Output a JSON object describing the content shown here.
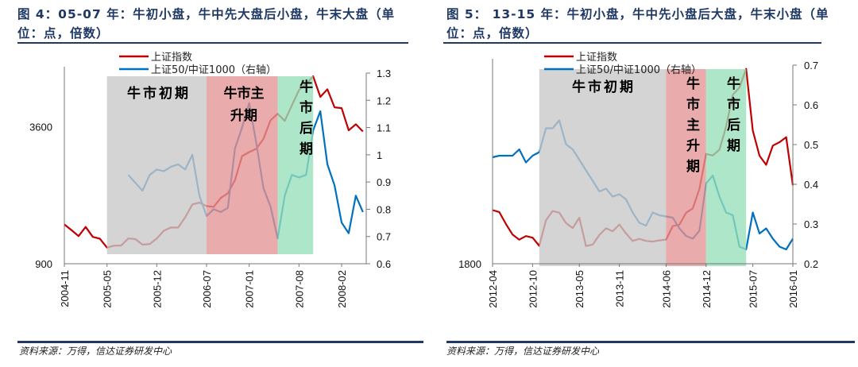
{
  "chart_data": [
    {
      "type": "line",
      "title": "图 4：05-07 年：牛初小盘，牛中先大盘后小盘，牛末大盘（单位：点，倍数）",
      "source": "资料来源：万得，信达证券研发中心",
      "x_tick_labels": [
        "2004-11",
        "2005-05",
        "2005-12",
        "2006-07",
        "2007-01",
        "2007-08",
        "2008-02"
      ],
      "left_axis": {
        "scale": "log",
        "ylim": [
          900,
          6200
        ],
        "tick_labels": [
          "3600",
          "900"
        ],
        "ticks": [
          3600,
          900
        ]
      },
      "right_axis": {
        "scale": "linear",
        "ylim": [
          0.6,
          1.3
        ],
        "tick_labels": [
          "1.3",
          "1.2",
          "1.1",
          "1",
          "0.9",
          "0.8",
          "0.7",
          "0.6"
        ],
        "ticks": [
          1.3,
          1.2,
          1.1,
          1.0,
          0.9,
          0.8,
          0.7,
          0.6
        ]
      },
      "legend_placement": "top-left",
      "phases": [
        {
          "label": "牛市初期",
          "start": "2005-05",
          "end": "2006-07",
          "color": "#c8c8c8"
        },
        {
          "label": "牛市主升期",
          "start": "2006-07",
          "end": "2007-05",
          "color": "#e39393"
        },
        {
          "label": "牛市后期",
          "start": "2007-05",
          "end": "2007-10",
          "color": "#96dfb9"
        }
      ],
      "series": [
        {
          "name": "上证指数",
          "axis": "left",
          "color": "#c00000",
          "x": [
            "2004-11",
            "2004-12",
            "2005-01",
            "2005-02",
            "2005-03",
            "2005-04",
            "2005-05",
            "2005-06",
            "2005-07",
            "2005-08",
            "2005-09",
            "2005-10",
            "2005-11",
            "2005-12",
            "2006-01",
            "2006-02",
            "2006-03",
            "2006-04",
            "2006-05",
            "2006-06",
            "2006-07",
            "2006-08",
            "2006-09",
            "2006-10",
            "2006-11",
            "2006-12",
            "2007-01",
            "2007-02",
            "2007-03",
            "2007-04",
            "2007-05",
            "2007-06",
            "2007-07",
            "2007-08",
            "2007-09",
            "2007-10",
            "2007-11",
            "2007-12",
            "2008-01",
            "2008-02",
            "2008-03",
            "2008-04",
            "2008-05"
          ],
          "y": [
            1340,
            1266,
            1191,
            1306,
            1181,
            1159,
            1060,
            1080,
            1083,
            1162,
            1155,
            1092,
            1099,
            1161,
            1258,
            1299,
            1298,
            1440,
            1641,
            1672,
            1612,
            1601,
            1752,
            1837,
            2099,
            2675,
            2786,
            2881,
            3183,
            3841,
            4109,
            3820,
            4471,
            5218,
            5552,
            6000,
            4871,
            5261,
            4383,
            4348,
            3472,
            3693,
            3433
          ]
        },
        {
          "name": "上证50/中证1000（右轴）",
          "axis": "right",
          "color": "#0070c0",
          "x": [
            "2005-08",
            "2005-10",
            "2005-11",
            "2005-12",
            "2006-01",
            "2006-02",
            "2006-03",
            "2006-04",
            "2006-05",
            "2006-06",
            "2006-07",
            "2006-08",
            "2006-09",
            "2006-10",
            "2006-11",
            "2006-12",
            "2007-01",
            "2007-02",
            "2007-03",
            "2007-04",
            "2007-05",
            "2007-06",
            "2007-07",
            "2007-08",
            "2007-09",
            "2007-10",
            "2007-11",
            "2007-12",
            "2008-01",
            "2008-02",
            "2008-03",
            "2008-04",
            "2008-05"
          ],
          "y": [
            0.926,
            0.868,
            0.926,
            0.946,
            0.94,
            0.956,
            0.965,
            0.946,
            1.0,
            0.85,
            0.775,
            0.8,
            0.79,
            0.805,
            1.024,
            1.1,
            1.19,
            1.043,
            0.878,
            0.81,
            0.693,
            0.85,
            0.926,
            0.917,
            0.926,
            1.09,
            1.16,
            0.965,
            0.888,
            0.751,
            0.712,
            0.85,
            0.79
          ]
        }
      ]
    },
    {
      "type": "line",
      "title": "图 5： 13-15 年：牛初小盘，牛中先小盘后大盘，牛末小盘（单位：点，倍数）",
      "source": "资料来源：万得，信达证券研发中心",
      "x_tick_labels": [
        "2012-04",
        "2012-10",
        "2013-05",
        "2013-11",
        "2014-06",
        "2014-12",
        "2015-07",
        "2016-01"
      ],
      "left_axis": {
        "scale": "log",
        "ylim": [
          1800,
          5200
        ],
        "tick_labels": [
          "1800"
        ],
        "ticks": [
          1800
        ]
      },
      "right_axis": {
        "scale": "linear",
        "ylim": [
          0.2,
          0.7
        ],
        "tick_labels": [
          "0.7",
          "0.6",
          "0.5",
          "0.4",
          "0.3",
          "0.2"
        ],
        "ticks": [
          0.7,
          0.6,
          0.5,
          0.4,
          0.3,
          0.2
        ]
      },
      "legend_placement": "top-left",
      "phases": [
        {
          "label": "牛市初期",
          "start": "2012-11",
          "end": "2014-06",
          "color": "#c8c8c8"
        },
        {
          "label": "牛市主升期",
          "start": "2014-06",
          "end": "2014-12",
          "color": "#e39393"
        },
        {
          "label": "牛市后期",
          "start": "2014-12",
          "end": "2015-06",
          "color": "#96dfb9"
        }
      ],
      "series": [
        {
          "name": "上证指数",
          "axis": "left",
          "color": "#c00000",
          "x": [
            "2012-04",
            "2012-05",
            "2012-06",
            "2012-07",
            "2012-08",
            "2012-09",
            "2012-10",
            "2012-11",
            "2012-12",
            "2013-01",
            "2013-02",
            "2013-03",
            "2013-04",
            "2013-05",
            "2013-06",
            "2013-07",
            "2013-08",
            "2013-09",
            "2013-10",
            "2013-11",
            "2013-12",
            "2014-01",
            "2014-02",
            "2014-03",
            "2014-04",
            "2014-05",
            "2014-06",
            "2014-07",
            "2014-08",
            "2014-09",
            "2014-10",
            "2014-11",
            "2014-12",
            "2015-01",
            "2015-02",
            "2015-03",
            "2015-04",
            "2015-05",
            "2015-06",
            "2015-07",
            "2015-08",
            "2015-09",
            "2015-10",
            "2015-11",
            "2015-12",
            "2016-01"
          ],
          "y": [
            2397,
            2373,
            2226,
            2103,
            2047,
            2086,
            2069,
            1980,
            2269,
            2385,
            2365,
            2237,
            2178,
            2301,
            1979,
            1994,
            2098,
            2175,
            2141,
            2220,
            2116,
            2033,
            2056,
            2033,
            2026,
            2039,
            2048,
            2201,
            2217,
            2364,
            2420,
            2683,
            3235,
            3210,
            3310,
            3748,
            4441,
            4612,
            5100,
            3664,
            3206,
            3053,
            3383,
            3445,
            3539,
            2738
          ]
        },
        {
          "name": "上证50/中证1000（右轴）",
          "axis": "right",
          "color": "#0070c0",
          "x": [
            "2012-04",
            "2012-05",
            "2012-06",
            "2012-07",
            "2012-08",
            "2012-09",
            "2012-10",
            "2012-11",
            "2012-12",
            "2013-01",
            "2013-02",
            "2013-03",
            "2013-04",
            "2013-05",
            "2013-06",
            "2013-07",
            "2013-08",
            "2013-09",
            "2013-10",
            "2013-11",
            "2013-12",
            "2014-01",
            "2014-02",
            "2014-03",
            "2014-04",
            "2014-05",
            "2014-06",
            "2014-07",
            "2014-08",
            "2014-09",
            "2014-10",
            "2014-11",
            "2014-12",
            "2015-01",
            "2015-02",
            "2015-03",
            "2015-04",
            "2015-05",
            "2015-06",
            "2015-07",
            "2015-08",
            "2015-09",
            "2015-10",
            "2015-11",
            "2015-12",
            "2016-01"
          ],
          "y": [
            0.468,
            0.472,
            0.472,
            0.472,
            0.488,
            0.455,
            0.472,
            0.481,
            0.541,
            0.541,
            0.561,
            0.501,
            0.488,
            0.462,
            0.435,
            0.409,
            0.382,
            0.389,
            0.369,
            0.375,
            0.362,
            0.329,
            0.303,
            0.296,
            0.329,
            0.322,
            0.319,
            0.316,
            0.289,
            0.27,
            0.263,
            0.283,
            0.402,
            0.422,
            0.369,
            0.329,
            0.322,
            0.243,
            0.236,
            0.329,
            0.276,
            0.289,
            0.263,
            0.243,
            0.236,
            0.263
          ]
        }
      ]
    }
  ]
}
